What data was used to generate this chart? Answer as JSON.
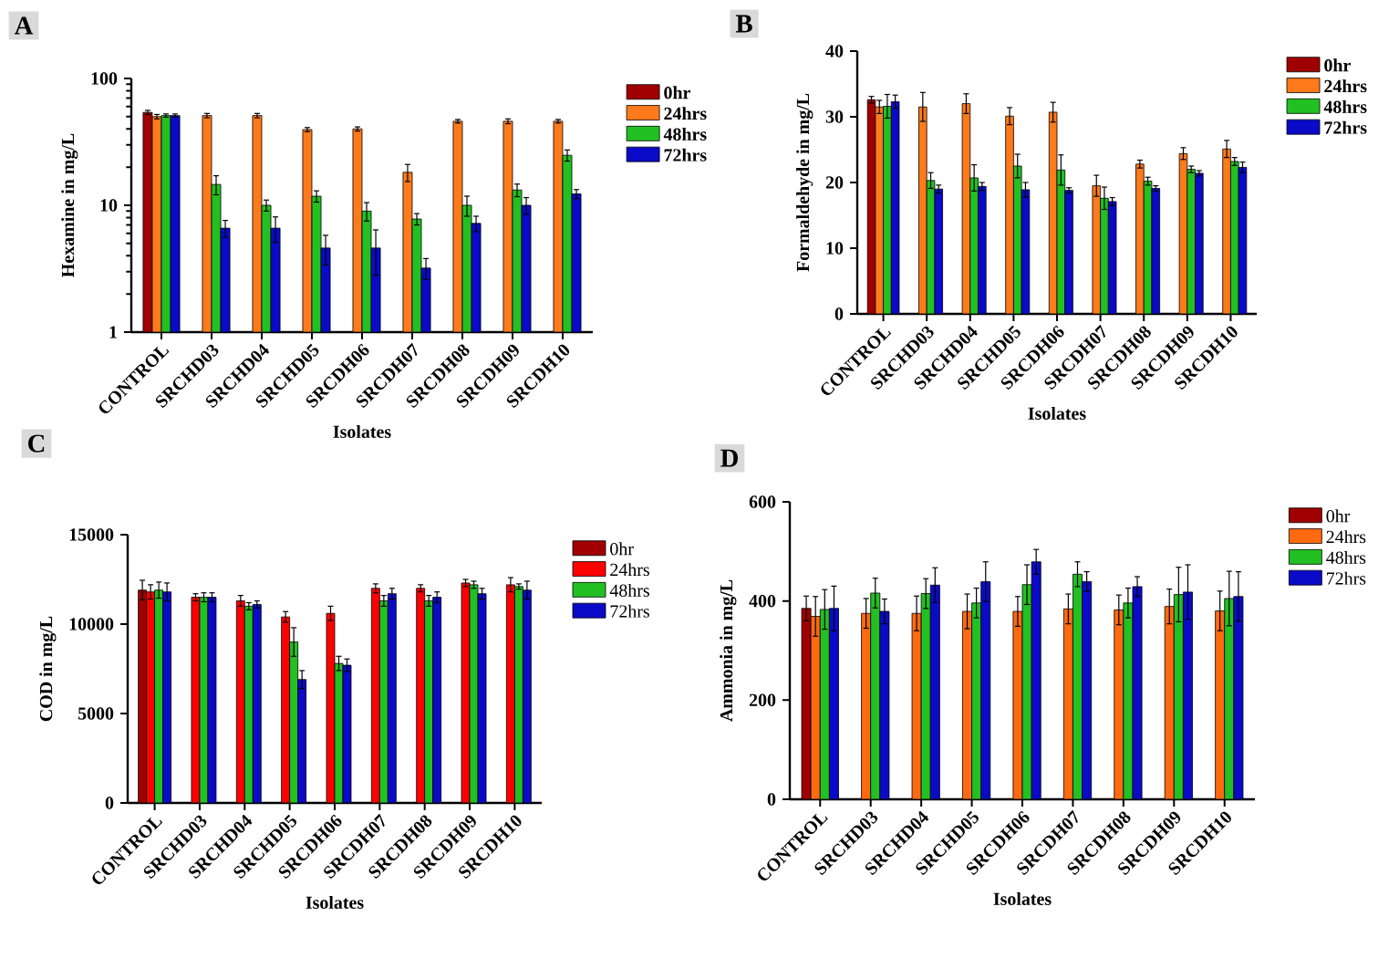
{
  "chart_data": [
    {
      "type": "bar",
      "title": "A",
      "xlabel": "Isolates",
      "ylabel": "Hexamine in mg/L",
      "log": true,
      "legend": "right",
      "ylim": [
        1,
        100
      ],
      "yticks": [
        1,
        10,
        100
      ],
      "categories": [
        "CONTROL",
        "SRCHD03",
        "SRCHD04",
        "SRCHD05",
        "SRCDH06",
        "SRCDH07",
        "SRCDH08",
        "SRCDH09",
        "SRCDH10"
      ],
      "series": [
        {
          "name": "0hr",
          "color": "#a00000",
          "values": [
            54,
            null,
            null,
            null,
            null,
            null,
            null,
            null,
            null
          ],
          "errors": [
            2,
            null,
            null,
            null,
            null,
            null,
            null,
            null,
            null
          ]
        },
        {
          "name": "24hrs",
          "color": "#ff7a1a",
          "values": [
            50,
            51,
            51,
            39.5,
            40,
            18.2,
            46,
            46,
            46
          ],
          "errors": [
            2,
            2,
            2,
            1.5,
            1.5,
            2.8,
            1.5,
            2,
            1.5
          ]
        },
        {
          "name": "48hrs",
          "color": "#22c022",
          "values": [
            51,
            14.6,
            10,
            11.8,
            9,
            7.8,
            10,
            13.2,
            24.8
          ],
          "errors": [
            1.5,
            2.5,
            1,
            1.2,
            1.5,
            0.8,
            1.8,
            1.5,
            2.5
          ]
        },
        {
          "name": "72hrs",
          "color": "#0a0ac8",
          "values": [
            51,
            6.6,
            6.6,
            4.6,
            4.6,
            3.2,
            7.2,
            10,
            12.3
          ],
          "errors": [
            1.5,
            1,
            1.5,
            1.2,
            1.8,
            0.6,
            1,
            1.5,
            1
          ]
        }
      ]
    },
    {
      "type": "bar",
      "title": "B",
      "xlabel": "Isolates",
      "ylabel": "Formaldehyde in mg/L",
      "legend": "right",
      "ylim": [
        0,
        40
      ],
      "yticks": [
        0,
        10,
        20,
        30,
        40
      ],
      "categories": [
        "CONTROL",
        "SRCHD03",
        "SRCHD04",
        "SRCHD05",
        "SRCDH06",
        "SRCDH07",
        "SRCDH08",
        "SRCDH09",
        "SRCDH10"
      ],
      "series": [
        {
          "name": "0hr",
          "color": "#a00000",
          "values": [
            32.6,
            null,
            null,
            null,
            null,
            null,
            null,
            null,
            null
          ],
          "errors": [
            0.5,
            null,
            null,
            null,
            null,
            null,
            null,
            null,
            null
          ]
        },
        {
          "name": "24hrs",
          "color": "#ff7a1a",
          "values": [
            31.5,
            31.5,
            32,
            30.1,
            30.7,
            19.5,
            22.8,
            24.4,
            25.1
          ],
          "errors": [
            1,
            2.2,
            1.5,
            1.3,
            1.5,
            1.6,
            0.6,
            0.9,
            1.3
          ]
        },
        {
          "name": "48hrs",
          "color": "#22c022",
          "values": [
            31.6,
            20.3,
            20.7,
            22.5,
            21.9,
            17.6,
            20.2,
            22,
            23.2
          ],
          "errors": [
            1.8,
            1.2,
            2,
            1.8,
            2.3,
            1.7,
            0.6,
            0.5,
            0.6
          ]
        },
        {
          "name": "72hrs",
          "color": "#0a0ac8",
          "values": [
            32.3,
            19,
            19.4,
            18.9,
            18.8,
            17.1,
            19.1,
            21.4,
            22.3
          ],
          "errors": [
            1,
            0.6,
            0.6,
            1.1,
            0.4,
            0.6,
            0.4,
            0.4,
            0.8
          ]
        }
      ]
    },
    {
      "type": "bar",
      "xlabel": "Isolates",
      "ylabel": "COD in mg/L",
      "title": "C",
      "legend": "right",
      "ylim": [
        0,
        15000
      ],
      "yticks": [
        0,
        5000,
        10000,
        15000
      ],
      "categories": [
        "CONTROL",
        "SRCHD03",
        "SRCHD04",
        "SRCHD05",
        "SRCDH06",
        "SRCDH07",
        "SRCDH08",
        "SRCDH09",
        "SRCDH10"
      ],
      "series": [
        {
          "name": "0hr",
          "color": "#a00000",
          "values": [
            11900,
            null,
            null,
            null,
            null,
            null,
            null,
            null,
            null
          ],
          "errors": [
            550,
            null,
            null,
            null,
            null,
            null,
            null,
            null,
            null
          ]
        },
        {
          "name": "24hrs",
          "color": "#ff0000",
          "values": [
            11800,
            11500,
            11300,
            10400,
            10600,
            12000,
            12000,
            12300,
            12200
          ],
          "errors": [
            400,
            200,
            300,
            300,
            400,
            250,
            200,
            200,
            400
          ]
        },
        {
          "name": "48hrs",
          "color": "#22c022",
          "values": [
            11900,
            11500,
            11000,
            9000,
            7800,
            11300,
            11300,
            12200,
            12100
          ],
          "errors": [
            450,
            250,
            200,
            800,
            400,
            300,
            300,
            200,
            150
          ]
        },
        {
          "name": "72hrs",
          "color": "#0a0ac8",
          "values": [
            11800,
            11500,
            11100,
            6900,
            7700,
            11700,
            11500,
            11700,
            11900
          ],
          "errors": [
            500,
            250,
            200,
            500,
            350,
            300,
            300,
            300,
            500
          ]
        }
      ]
    },
    {
      "type": "bar",
      "xlabel": "Isolates",
      "ylabel": "Ammonia in mg/L",
      "title": "D",
      "legend": "right",
      "ylim": [
        0,
        600
      ],
      "yticks": [
        0,
        200,
        400,
        600
      ],
      "categories": [
        "CONTROL",
        "SRCHD03",
        "SRCHD04",
        "SRCHD05",
        "SRCDH06",
        "SRCDH07",
        "SRCDH08",
        "SRCDH09",
        "SRCDH10"
      ],
      "series": [
        {
          "name": "0hr",
          "color": "#a00000",
          "values": [
            385,
            null,
            null,
            null,
            null,
            null,
            null,
            null,
            null
          ],
          "errors": [
            25,
            null,
            null,
            null,
            null,
            null,
            null,
            null,
            null
          ]
        },
        {
          "name": "24hrs",
          "color": "#ff6a10",
          "values": [
            369,
            375,
            375,
            379,
            379,
            384,
            382,
            389,
            380
          ],
          "errors": [
            40,
            30,
            35,
            35,
            30,
            30,
            30,
            35,
            40
          ]
        },
        {
          "name": "48hrs",
          "color": "#22c022",
          "values": [
            383,
            416,
            415,
            396,
            433,
            454,
            396,
            413,
            405
          ],
          "errors": [
            40,
            30,
            30,
            30,
            40,
            25,
            30,
            55,
            55
          ]
        },
        {
          "name": "72hrs",
          "color": "#0a0ac8",
          "values": [
            385,
            379,
            432,
            439,
            479,
            439,
            429,
            418,
            409
          ],
          "errors": [
            45,
            25,
            35,
            40,
            25,
            20,
            20,
            55,
            50
          ]
        }
      ]
    }
  ]
}
